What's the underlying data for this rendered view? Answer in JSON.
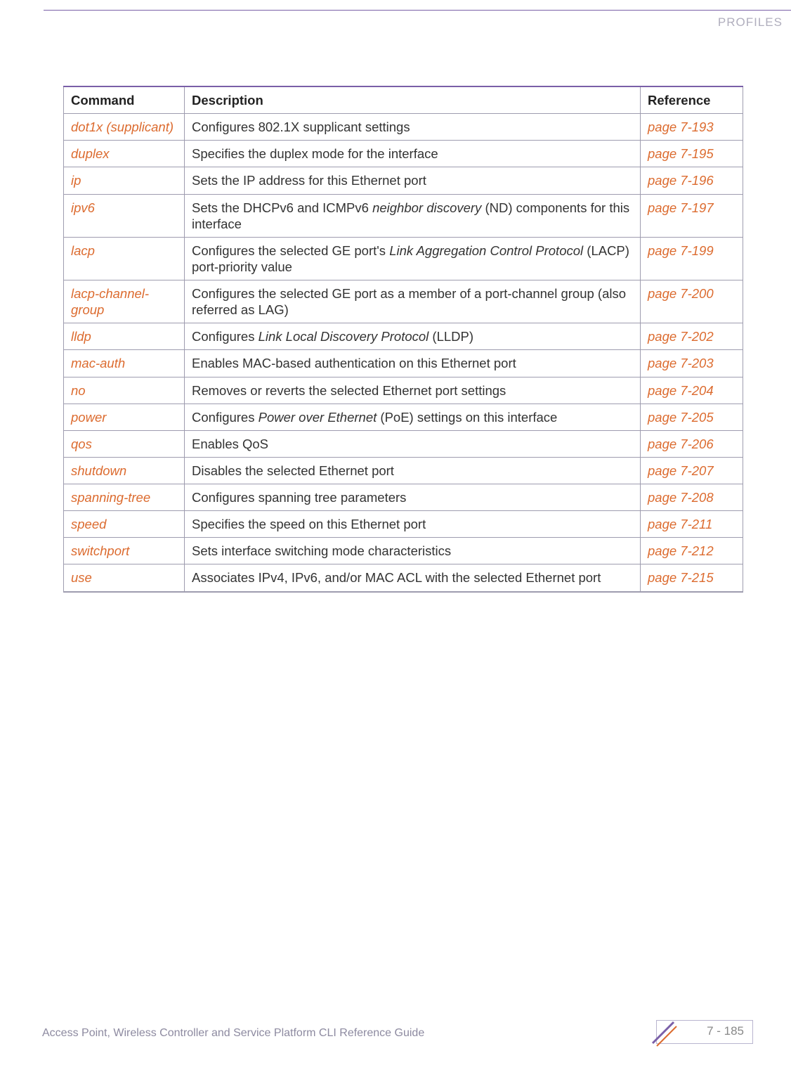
{
  "header": {
    "section": "PROFILES"
  },
  "table": {
    "headers": {
      "command": "Command",
      "description": "Description",
      "reference": "Reference"
    },
    "rows": [
      {
        "cmd": "dot1x (supplicant)",
        "desc": "Configures 802.1X supplicant settings",
        "ref": "page 7-193"
      },
      {
        "cmd": "duplex",
        "desc": "Specifies the duplex mode for the interface",
        "ref": "page 7-195"
      },
      {
        "cmd": "ip",
        "desc": "Sets the IP address for this Ethernet port",
        "ref": "page 7-196"
      },
      {
        "cmd": "ipv6",
        "desc": "Sets the DHCPv6 and ICMPv6 <em>neighbor discovery</em> (ND) components for this interface",
        "ref": "page 7-197"
      },
      {
        "cmd": "lacp",
        "desc": "Configures the selected GE port's <em>Link Aggregation Control Protocol</em> (LACP) port-priority value",
        "ref": "page 7-199"
      },
      {
        "cmd": "lacp-channel-group",
        "desc": "Configures the selected GE port as a member of a port-channel group (also referred as LAG)",
        "ref": "page 7-200"
      },
      {
        "cmd": "lldp",
        "desc": "Configures <em>Link Local Discovery Protocol</em> (LLDP)",
        "ref": "page 7-202"
      },
      {
        "cmd": "mac-auth",
        "desc": "Enables MAC-based authentication on this Ethernet port",
        "ref": "page 7-203"
      },
      {
        "cmd": "no",
        "desc": "Removes or reverts the selected Ethernet port settings",
        "ref": "page 7-204"
      },
      {
        "cmd": "power",
        "desc": "Configures <em>Power over Ethernet</em> (PoE) settings on this interface",
        "ref": "page 7-205"
      },
      {
        "cmd": "qos",
        "desc": "Enables QoS",
        "ref": "page 7-206"
      },
      {
        "cmd": "shutdown",
        "desc": "Disables the selected Ethernet port",
        "ref": "page 7-207"
      },
      {
        "cmd": "spanning-tree",
        "desc": "Configures spanning tree parameters",
        "ref": "page 7-208"
      },
      {
        "cmd": "speed",
        "desc": "Specifies the speed on this Ethernet port",
        "ref": "page 7-211"
      },
      {
        "cmd": "switchport",
        "desc": "Sets interface switching mode characteristics",
        "ref": "page 7-212"
      },
      {
        "cmd": "use",
        "desc": "Associates IPv4, IPv6, and/or MAC ACL with the selected Ethernet port",
        "ref": "page 7-215"
      }
    ]
  },
  "footer": {
    "guide": "Access Point, Wireless Controller and Service Platform CLI Reference Guide",
    "page": "7 - 185"
  },
  "colors": {
    "accent": "#dc6b2f",
    "rule": "#7a5fa8",
    "border": "#9e9caf",
    "muted": "#8d8aa0"
  }
}
